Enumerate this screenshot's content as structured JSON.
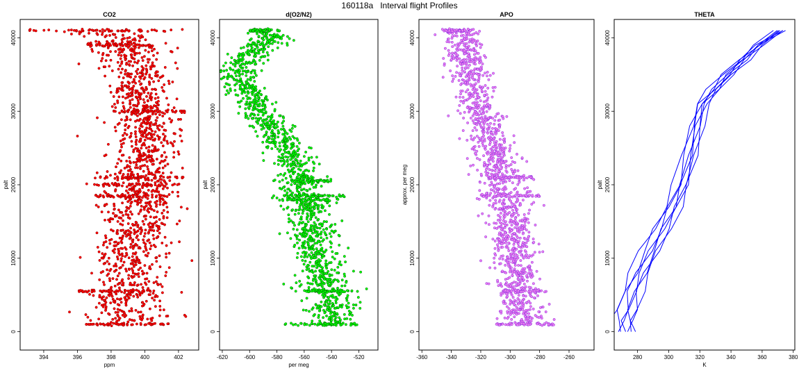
{
  "main_title": "160118a   Interval flight Profiles",
  "chart_data": [
    {
      "type": "scatter",
      "title": "CO2",
      "xlabel": "ppm",
      "ylabel": "palt",
      "xlim": [
        392.6,
        403.2
      ],
      "ylim": [
        -2500,
        42500
      ],
      "xticks": [
        394,
        396,
        398,
        400,
        402
      ],
      "yticks": [
        0,
        10000,
        20000,
        30000,
        40000
      ],
      "color": "#ff0000",
      "edge_color": "#8b0000",
      "profile": [
        [
          0,
          398.8
        ],
        [
          2000,
          398.8
        ],
        [
          5000,
          398.9
        ],
        [
          10000,
          399.2
        ],
        [
          15000,
          399.5
        ],
        [
          20000,
          399.8
        ],
        [
          25000,
          400.0
        ],
        [
          30000,
          400.0
        ],
        [
          35000,
          399.5
        ],
        [
          38000,
          399.0
        ],
        [
          41000,
          398.0
        ]
      ],
      "spread": [
        [
          0,
          1.3
        ],
        [
          10000,
          1.1
        ],
        [
          25000,
          0.9
        ],
        [
          35000,
          0.9
        ],
        [
          41000,
          1.1
        ]
      ],
      "bands": [
        [
          1000,
          396.5,
          401.5
        ],
        [
          5500,
          396.0,
          400.5
        ],
        [
          18500,
          397.0,
          401.5
        ],
        [
          20000,
          396.5,
          402.0
        ],
        [
          21000,
          397.0,
          402.5
        ],
        [
          30000,
          398.0,
          402.5
        ],
        [
          39000,
          396.5,
          400.5
        ],
        [
          41000,
          393.0,
          402.5
        ]
      ]
    },
    {
      "type": "scatter",
      "title": "d(O2/N2)",
      "xlabel": "per meg",
      "ylabel": "palt",
      "xlim": [
        -622,
        -506
      ],
      "ylim": [
        -2500,
        42500
      ],
      "xticks": [
        -620,
        -600,
        -580,
        -560,
        -540,
        -520
      ],
      "yticks": [
        0,
        10000,
        20000,
        30000,
        40000
      ],
      "color": "#00ff00",
      "edge_color": "#006400",
      "profile": [
        [
          0,
          -540
        ],
        [
          3000,
          -540
        ],
        [
          6000,
          -545
        ],
        [
          10000,
          -550
        ],
        [
          15000,
          -555
        ],
        [
          19000,
          -560
        ],
        [
          22000,
          -565
        ],
        [
          25000,
          -572
        ],
        [
          28000,
          -585
        ],
        [
          31000,
          -596
        ],
        [
          34000,
          -606
        ],
        [
          36000,
          -607
        ],
        [
          38000,
          -598
        ],
        [
          40000,
          -585
        ],
        [
          41000,
          -590
        ]
      ],
      "spread": [
        [
          0,
          9
        ],
        [
          10000,
          8
        ],
        [
          20000,
          9
        ],
        [
          30000,
          7
        ],
        [
          41000,
          7
        ]
      ],
      "bands": [
        [
          1000,
          -575,
          -520
        ],
        [
          5500,
          -560,
          -525
        ],
        [
          18000,
          -580,
          -535
        ],
        [
          18500,
          -575,
          -530
        ],
        [
          20500,
          -570,
          -540
        ],
        [
          41000,
          -600,
          -585
        ]
      ]
    },
    {
      "type": "scatter",
      "title": "APO",
      "xlabel": "",
      "ylabel": "approx. per meg",
      "xlim": [
        -362,
        -243
      ],
      "ylim": [
        -2500,
        42500
      ],
      "xticks": [
        -360,
        -340,
        -320,
        -300,
        -280,
        -260
      ],
      "yticks": [
        0,
        10000,
        20000,
        30000,
        40000
      ],
      "color": "#ee82ee",
      "edge_color": "#8a2be2",
      "profile": [
        [
          0,
          -290
        ],
        [
          3000,
          -292
        ],
        [
          6000,
          -295
        ],
        [
          10000,
          -298
        ],
        [
          15000,
          -300
        ],
        [
          20000,
          -305
        ],
        [
          25000,
          -312
        ],
        [
          29000,
          -318
        ],
        [
          33000,
          -325
        ],
        [
          37000,
          -330
        ],
        [
          41000,
          -333
        ]
      ],
      "spread": [
        [
          0,
          8
        ],
        [
          10000,
          7
        ],
        [
          20000,
          8
        ],
        [
          30000,
          7
        ],
        [
          41000,
          6
        ]
      ],
      "bands": [
        [
          1000,
          -310,
          -270
        ],
        [
          5500,
          -305,
          -275
        ],
        [
          18500,
          -320,
          -280
        ],
        [
          21000,
          -315,
          -285
        ],
        [
          41000,
          -345,
          -330
        ]
      ]
    },
    {
      "type": "line",
      "title": "THETA",
      "xlabel": "K",
      "ylabel": "palt",
      "xlim": [
        265,
        381
      ],
      "ylim": [
        -2500,
        42500
      ],
      "xticks": [
        280,
        300,
        320,
        340,
        360,
        380
      ],
      "yticks": [
        0,
        10000,
        20000,
        30000,
        40000
      ],
      "color": "#0000ff",
      "profile_points": [
        [
          0,
          272
        ],
        [
          1500,
          272
        ],
        [
          3000,
          274
        ],
        [
          5500,
          277
        ],
        [
          8000,
          282
        ],
        [
          11000,
          289
        ],
        [
          14000,
          296
        ],
        [
          17000,
          303
        ],
        [
          20000,
          309
        ],
        [
          24000,
          314
        ],
        [
          28000,
          318
        ],
        [
          31000,
          322
        ],
        [
          33000,
          330
        ],
        [
          35000,
          338
        ],
        [
          37000,
          348
        ],
        [
          39000,
          358
        ],
        [
          41000,
          372
        ]
      ],
      "line_offsets": [
        -8,
        -5,
        -2,
        0,
        2,
        4,
        6
      ]
    }
  ]
}
